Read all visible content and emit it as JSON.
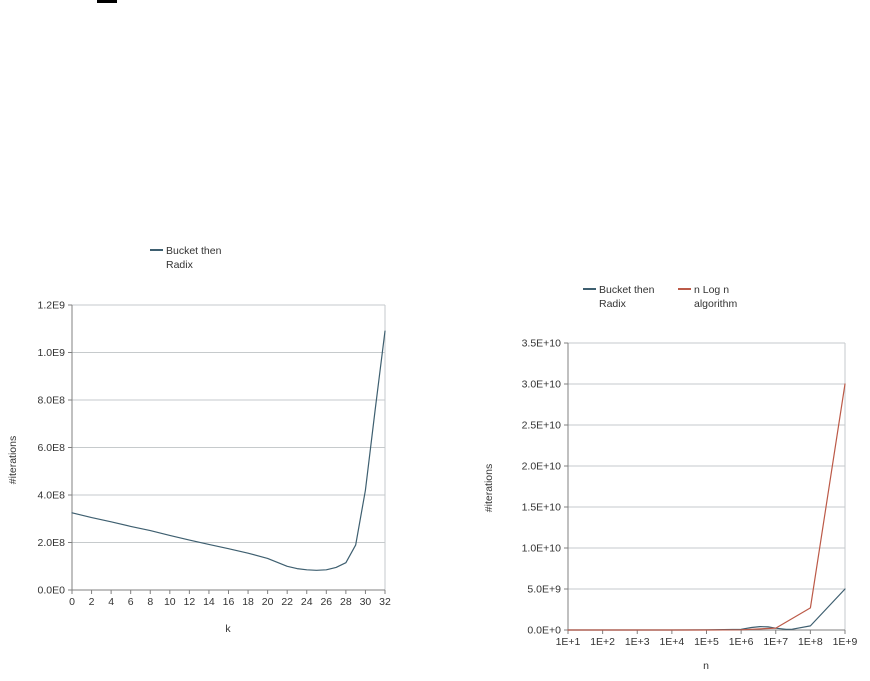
{
  "colors": {
    "blue": "#3e5f70",
    "red": "#bc5a48",
    "grid": "#c6cacc",
    "axis": "#808080",
    "text": "#333333",
    "mark": "#000000"
  },
  "chart_data": [
    {
      "type": "line",
      "name": "bucket-then-radix-iterations-vs-k",
      "title": "",
      "xlabel": "k",
      "ylabel": "#iterations",
      "x_scale": "linear",
      "xlim": [
        0,
        32
      ],
      "ylim": [
        0,
        1200000000
      ],
      "grid": "horizontal",
      "legend_position": "top",
      "x_ticks": [
        "0",
        "2",
        "4",
        "6",
        "8",
        "10",
        "12",
        "14",
        "16",
        "18",
        "20",
        "22",
        "24",
        "26",
        "28",
        "30",
        "32"
      ],
      "y_ticks": [
        "1.2E9",
        "1.0E9",
        "8.0E8",
        "6.0E8",
        "4.0E8",
        "2.0E8",
        "0.0E0"
      ],
      "legend": [
        {
          "label_line1": "Bucket then",
          "label_line2": "Radix",
          "color_key": "blue"
        }
      ],
      "series": [
        {
          "name": "Bucket then Radix",
          "color_key": "blue",
          "x": [
            0,
            2,
            4,
            6,
            8,
            10,
            12,
            14,
            16,
            18,
            20,
            22,
            23,
            24,
            25,
            26,
            27,
            28,
            29,
            30,
            31,
            32
          ],
          "y": [
            325000000,
            305000000,
            287000000,
            268000000,
            250000000,
            230000000,
            210000000,
            192000000,
            174000000,
            155000000,
            133000000,
            100000000,
            90000000,
            85000000,
            83000000,
            85000000,
            95000000,
            115000000,
            190000000,
            420000000,
            760000000,
            1090000000
          ]
        }
      ]
    },
    {
      "type": "line",
      "name": "bucket-then-radix-vs-nlogn-iterations-vs-n",
      "title": "",
      "xlabel": "n",
      "ylabel": "#iterations",
      "x_scale": "log",
      "xlim": [
        10,
        1000000000
      ],
      "ylim": [
        0,
        35000000000
      ],
      "grid": "horizontal",
      "legend_position": "top",
      "x_ticks": [
        "1E+1",
        "1E+2",
        "1E+3",
        "1E+4",
        "1E+5",
        "1E+6",
        "1E+7",
        "1E+8",
        "1E+9"
      ],
      "y_ticks": [
        "3.5E+10",
        "3.0E+10",
        "2.5E+10",
        "2.0E+10",
        "1.5E+10",
        "1.0E+10",
        "5.0E+9",
        "0.0E+0"
      ],
      "legend": [
        {
          "label_line1": "Bucket then",
          "label_line2": "Radix",
          "color_key": "blue"
        },
        {
          "label_line1": "n Log n",
          "label_line2": "algorithm",
          "color_key": "red"
        }
      ],
      "series": [
        {
          "name": "Bucket then Radix",
          "color_key": "blue",
          "x": [
            10,
            100,
            1000,
            10000,
            100000,
            1000000,
            2000000,
            3500000,
            6000000,
            10000000,
            20000000,
            30000000,
            100000000,
            1000000000
          ],
          "y": [
            0,
            0,
            0,
            0,
            10000000,
            80000000,
            300000000,
            420000000,
            380000000,
            220000000,
            80000000,
            100000000,
            500000000,
            5000000000
          ]
        },
        {
          "name": "n Log n algorithm",
          "color_key": "red",
          "x": [
            10,
            100,
            1000,
            10000,
            100000,
            1000000,
            10000000,
            100000000,
            1000000000
          ],
          "y": [
            33,
            664,
            10000,
            133000,
            1700000,
            20000000,
            230000000,
            2700000000,
            30000000000
          ]
        }
      ]
    }
  ]
}
